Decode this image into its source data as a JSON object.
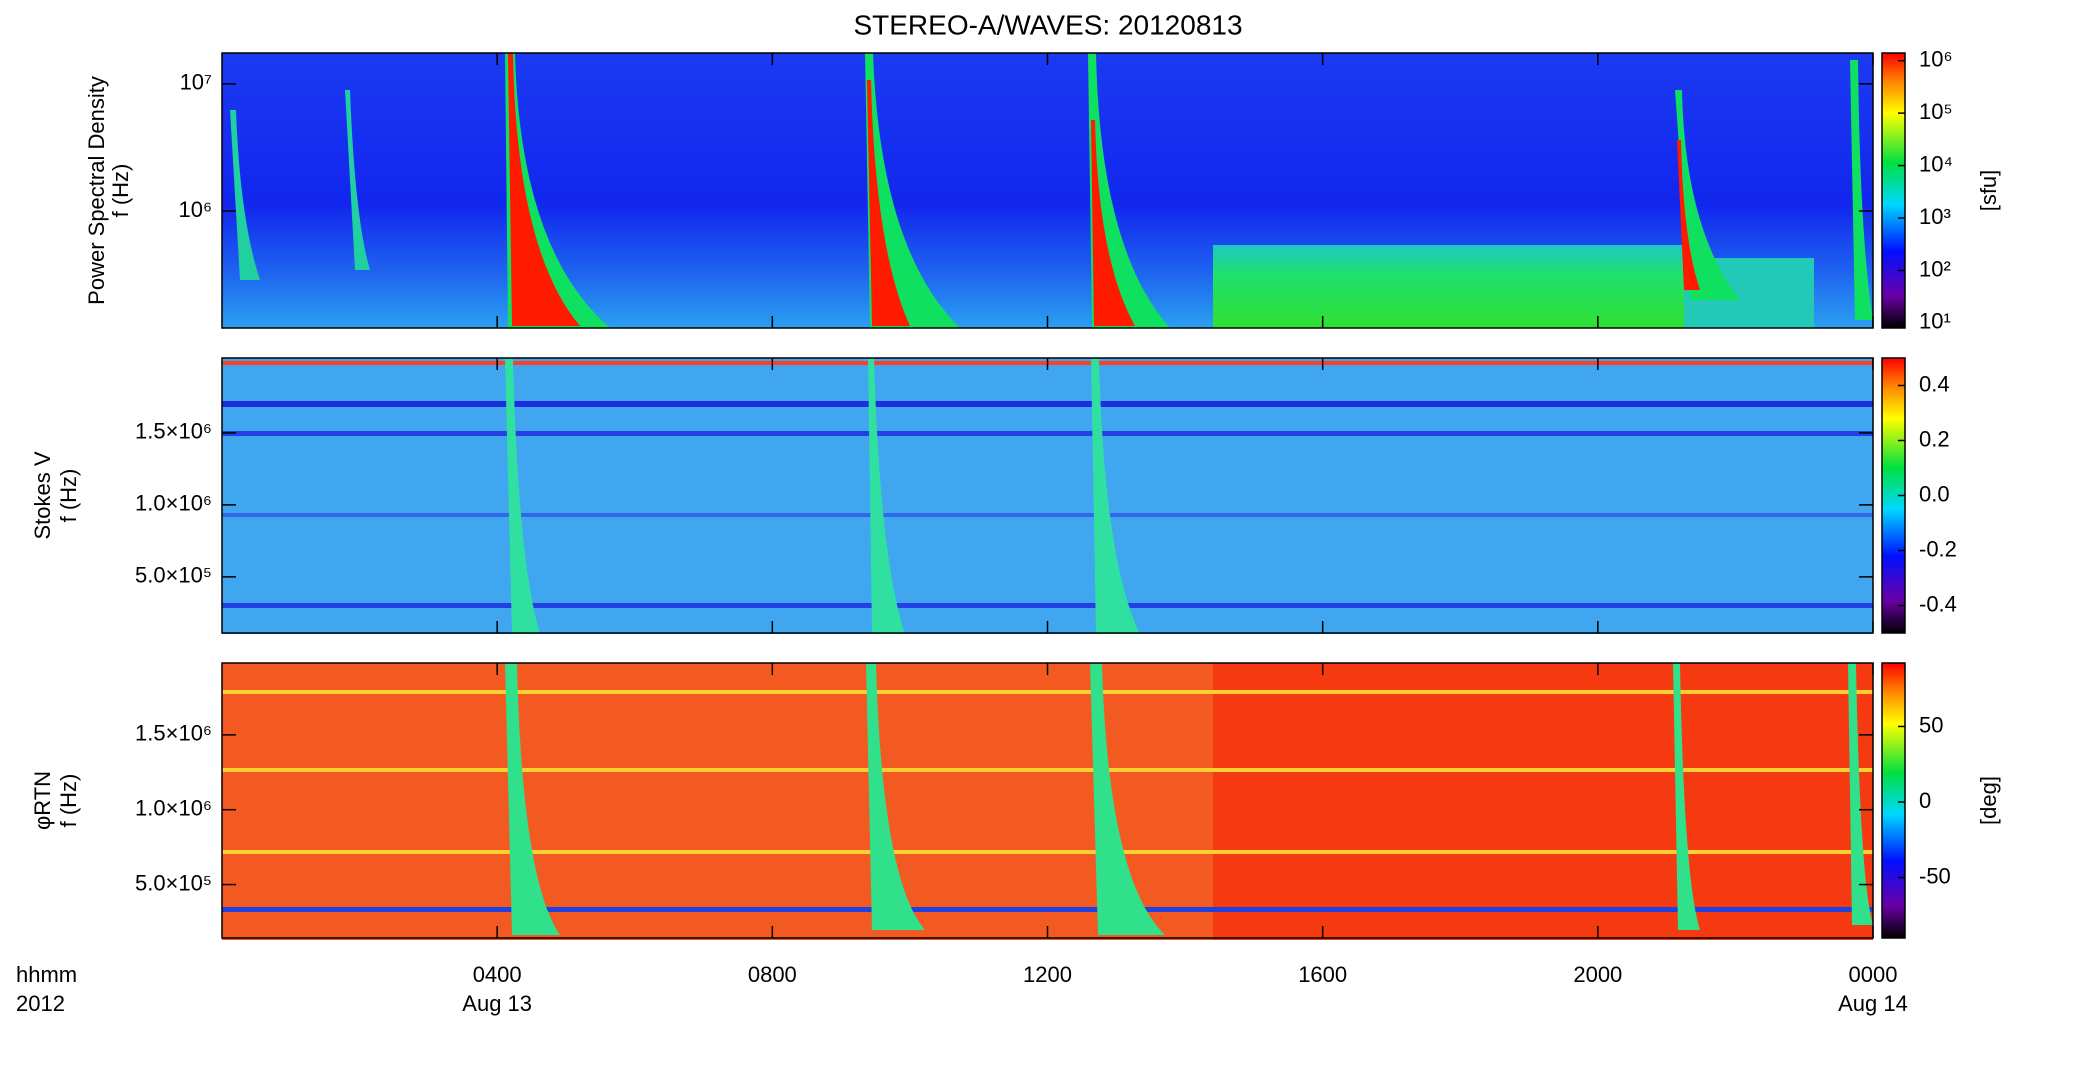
{
  "chart_data": {
    "type": "spectrogram",
    "title": "STEREO-A/WAVES: 20120813",
    "xlabel": "hhmm",
    "xsublabel": "2012",
    "xlim": [
      0,
      24
    ],
    "xticks": [
      {
        "value": 4,
        "label": "0400"
      },
      {
        "value": 8,
        "label": "0800"
      },
      {
        "value": 12,
        "label": "1200"
      },
      {
        "value": 16,
        "label": "1600"
      },
      {
        "value": 20,
        "label": "2000"
      },
      {
        "value": 24,
        "label": "0000"
      }
    ],
    "date_labels": [
      {
        "value": 4,
        "label": "Aug 13"
      },
      {
        "value": 24,
        "label": "Aug 14"
      }
    ],
    "panels": [
      {
        "ylabel": [
          "Power Spectral Density",
          "f (Hz)"
        ],
        "ylog": true,
        "ylim": [
          120000,
          17500000
        ],
        "yticks": [
          {
            "value": 1000000,
            "label": "10⁶"
          },
          {
            "value": 10000000,
            "label": "10⁷"
          }
        ],
        "colorbar": {
          "label": "[sfu]",
          "log": true,
          "clim": [
            8,
            1400000
          ],
          "cticks": [
            {
              "value": 10,
              "label": "10¹"
            },
            {
              "value": 100,
              "label": "10²"
            },
            {
              "value": 1000,
              "label": "10³"
            },
            {
              "value": 10000,
              "label": "10⁴"
            },
            {
              "value": 100000,
              "label": "10⁵"
            },
            {
              "value": 1000000,
              "label": "10⁶"
            }
          ]
        }
      },
      {
        "ylabel": [
          "Stokes V",
          "f (Hz)"
        ],
        "ylog": false,
        "ylim": [
          110000,
          2020000
        ],
        "yticks": [
          {
            "value": 500000,
            "label": "5.0×10⁵"
          },
          {
            "value": 1000000,
            "label": "1.0×10⁶"
          },
          {
            "value": 1500000,
            "label": "1.5×10⁶"
          }
        ],
        "colorbar": {
          "label": "",
          "log": false,
          "clim": [
            -0.5,
            0.5
          ],
          "cticks": [
            -0.4,
            -0.2,
            {
              "value": 0,
              "label": "0.0"
            },
            0.2,
            0.4
          ]
        }
      },
      {
        "ylabel": [
          "φRTN",
          "f (Hz)"
        ],
        "ylog": false,
        "ylim": [
          143000,
          1980000
        ],
        "yticks": [
          {
            "value": 500000,
            "label": "5.0×10⁵"
          },
          {
            "value": 1000000,
            "label": "1.0×10⁶"
          },
          {
            "value": 1500000,
            "label": "1.5×10⁶"
          }
        ],
        "colorbar": {
          "label": "[deg]",
          "log": false,
          "clim": [
            -90,
            92
          ],
          "cticks": [
            -50,
            0,
            50
          ]
        }
      }
    ]
  }
}
